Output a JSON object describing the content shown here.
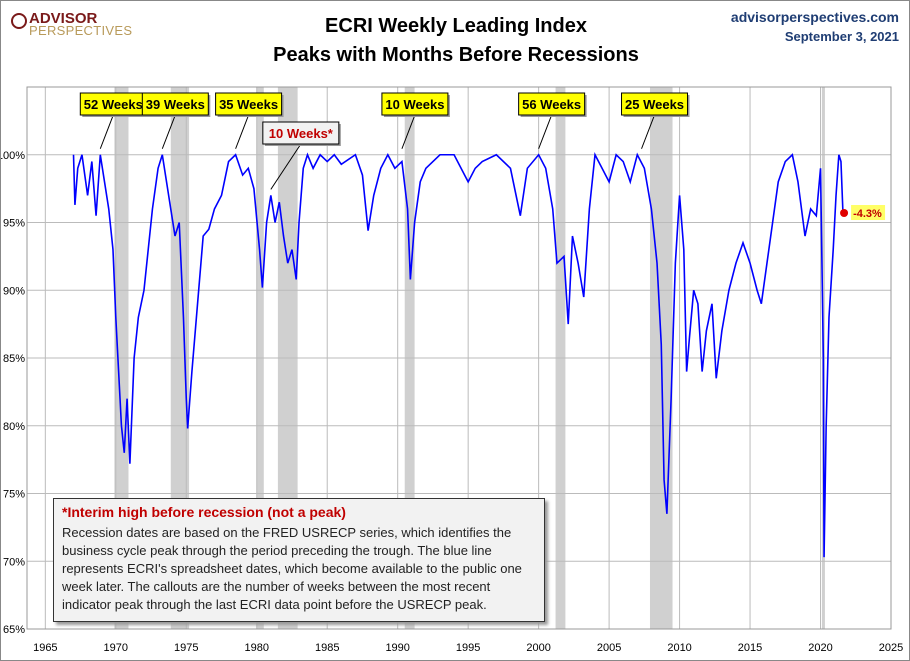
{
  "header": {
    "logo_line1": "ADVISOR",
    "logo_line2": "PERSPECTIVES",
    "site": "advisorperspectives.com",
    "date": "September 3, 2021"
  },
  "chart_data": {
    "type": "line",
    "title": "ECRI Weekly Leading Index",
    "subtitle": "Peaks with Months Before Recessions",
    "xlim": [
      1963.7,
      2025
    ],
    "ylim": [
      65,
      105
    ],
    "x_ticks": [
      "1965",
      "1970",
      "1975",
      "1980",
      "1985",
      "1990",
      "1995",
      "2000",
      "2005",
      "2010",
      "2015",
      "2020",
      "2025"
    ],
    "y_ticks": [
      "65%",
      "70%",
      "75%",
      "80%",
      "85%",
      "90%",
      "95%",
      "100%"
    ],
    "grid": true,
    "line_color": "#0000ff",
    "recession_color": "#d0d0d0",
    "recessions": [
      [
        1969.9,
        1970.9
      ],
      [
        1973.9,
        1975.2
      ],
      [
        1980.0,
        1980.5
      ],
      [
        1981.5,
        1982.9
      ],
      [
        1990.5,
        1991.2
      ],
      [
        2001.2,
        2001.9
      ],
      [
        2007.9,
        2009.5
      ],
      [
        2020.1,
        2020.3
      ]
    ],
    "series": [
      {
        "points": [
          [
            1967.0,
            100
          ],
          [
            1967.1,
            96.3
          ],
          [
            1967.3,
            99
          ],
          [
            1967.6,
            100
          ],
          [
            1968.0,
            97
          ],
          [
            1968.3,
            99.5
          ],
          [
            1968.6,
            95.5
          ],
          [
            1968.9,
            100
          ],
          [
            1969.2,
            98
          ],
          [
            1969.5,
            96
          ],
          [
            1969.8,
            93
          ],
          [
            1970.0,
            88
          ],
          [
            1970.2,
            84
          ],
          [
            1970.4,
            80
          ],
          [
            1970.6,
            78
          ],
          [
            1970.8,
            82
          ],
          [
            1971.0,
            77.2
          ],
          [
            1971.3,
            85
          ],
          [
            1971.6,
            88
          ],
          [
            1972.0,
            90
          ],
          [
            1972.3,
            93
          ],
          [
            1972.6,
            96
          ],
          [
            1973.0,
            99
          ],
          [
            1973.3,
            100
          ],
          [
            1973.6,
            98
          ],
          [
            1973.9,
            96
          ],
          [
            1974.2,
            94
          ],
          [
            1974.5,
            95
          ],
          [
            1974.8,
            88
          ],
          [
            1975.0,
            82
          ],
          [
            1975.1,
            79.8
          ],
          [
            1975.4,
            84
          ],
          [
            1975.8,
            89
          ],
          [
            1976.2,
            94
          ],
          [
            1976.6,
            94.5
          ],
          [
            1977.0,
            96
          ],
          [
            1977.5,
            97
          ],
          [
            1978.0,
            99.5
          ],
          [
            1978.5,
            100
          ],
          [
            1979.0,
            98.5
          ],
          [
            1979.4,
            99
          ],
          [
            1979.8,
            97.5
          ],
          [
            1980.2,
            93
          ],
          [
            1980.4,
            90.2
          ],
          [
            1980.7,
            95
          ],
          [
            1981.0,
            97
          ],
          [
            1981.3,
            95
          ],
          [
            1981.6,
            96.5
          ],
          [
            1981.9,
            94
          ],
          [
            1982.2,
            92
          ],
          [
            1982.5,
            93
          ],
          [
            1982.8,
            90.8
          ],
          [
            1983.0,
            95
          ],
          [
            1983.3,
            99
          ],
          [
            1983.6,
            100
          ],
          [
            1984.0,
            99
          ],
          [
            1984.5,
            100
          ],
          [
            1985.0,
            99.5
          ],
          [
            1985.5,
            100
          ],
          [
            1986.0,
            99.3
          ],
          [
            1987.0,
            100
          ],
          [
            1987.5,
            98.5
          ],
          [
            1987.9,
            94.4
          ],
          [
            1988.3,
            97
          ],
          [
            1988.8,
            99
          ],
          [
            1989.3,
            100
          ],
          [
            1989.8,
            99
          ],
          [
            1990.3,
            99.5
          ],
          [
            1990.7,
            96
          ],
          [
            1990.9,
            90.8
          ],
          [
            1991.2,
            95
          ],
          [
            1991.6,
            98
          ],
          [
            1992.0,
            99
          ],
          [
            1993.0,
            100
          ],
          [
            1994.0,
            100
          ],
          [
            1995.0,
            98
          ],
          [
            1995.5,
            99
          ],
          [
            1996.0,
            99.5
          ],
          [
            1997.0,
            100
          ],
          [
            1998.0,
            99
          ],
          [
            1998.7,
            95.5
          ],
          [
            1999.2,
            99
          ],
          [
            2000.0,
            100
          ],
          [
            2000.5,
            99
          ],
          [
            2001.0,
            96
          ],
          [
            2001.3,
            92
          ],
          [
            2001.8,
            92.5
          ],
          [
            2002.1,
            87.5
          ],
          [
            2002.4,
            94
          ],
          [
            2002.8,
            92
          ],
          [
            2003.2,
            89.5
          ],
          [
            2003.6,
            96
          ],
          [
            2004.0,
            100
          ],
          [
            2004.5,
            99
          ],
          [
            2005.0,
            98
          ],
          [
            2005.5,
            100
          ],
          [
            2006.0,
            99.5
          ],
          [
            2006.5,
            98
          ],
          [
            2007.0,
            100
          ],
          [
            2007.5,
            99
          ],
          [
            2008.0,
            96
          ],
          [
            2008.4,
            92
          ],
          [
            2008.7,
            86
          ],
          [
            2008.9,
            76
          ],
          [
            2009.1,
            73.5
          ],
          [
            2009.4,
            82
          ],
          [
            2009.7,
            92
          ],
          [
            2010.0,
            97
          ],
          [
            2010.3,
            93
          ],
          [
            2010.5,
            84
          ],
          [
            2010.7,
            86.5
          ],
          [
            2011.0,
            90
          ],
          [
            2011.3,
            89
          ],
          [
            2011.6,
            84
          ],
          [
            2011.9,
            87
          ],
          [
            2012.3,
            89
          ],
          [
            2012.6,
            83.5
          ],
          [
            2013.0,
            87
          ],
          [
            2013.5,
            90
          ],
          [
            2014.0,
            92
          ],
          [
            2014.5,
            93.5
          ],
          [
            2015.0,
            92
          ],
          [
            2015.5,
            90
          ],
          [
            2015.8,
            89
          ],
          [
            2016.2,
            92
          ],
          [
            2016.6,
            95
          ],
          [
            2017.0,
            98
          ],
          [
            2017.5,
            99.5
          ],
          [
            2018.0,
            100
          ],
          [
            2018.4,
            98
          ],
          [
            2018.9,
            94
          ],
          [
            2019.3,
            96
          ],
          [
            2019.7,
            95.5
          ],
          [
            2020.0,
            99
          ],
          [
            2020.2,
            85
          ],
          [
            2020.25,
            70.3
          ],
          [
            2020.4,
            80
          ],
          [
            2020.6,
            88
          ],
          [
            2020.9,
            93
          ],
          [
            2021.1,
            97
          ],
          [
            2021.3,
            100
          ],
          [
            2021.45,
            99.5
          ],
          [
            2021.58,
            96
          ],
          [
            2021.67,
            95.7
          ]
        ]
      }
    ],
    "last_point": {
      "x": 2021.67,
      "y": 95.7,
      "label": "-4.3%"
    },
    "callouts": [
      {
        "label": "52 Weeks",
        "x": 1968.9,
        "y": 100,
        "interim": false
      },
      {
        "label": "39 Weeks",
        "x": 1973.3,
        "y": 100,
        "interim": false
      },
      {
        "label": "35 Weeks",
        "x": 1978.5,
        "y": 100,
        "interim": false
      },
      {
        "label": "10 Weeks*",
        "x": 1981.0,
        "y": 97,
        "interim": true
      },
      {
        "label": "10 Weeks",
        "x": 1990.3,
        "y": 100,
        "interim": false
      },
      {
        "label": "56 Weeks",
        "x": 2000.0,
        "y": 100,
        "interim": false
      },
      {
        "label": "25 Weeks",
        "x": 2007.3,
        "y": 100,
        "interim": false
      }
    ]
  },
  "note": {
    "heading": "*Interim high before recession (not a peak)",
    "body": "Recession dates are based on the FRED USRECP series, which identifies the business cycle peak through the period preceding the trough. The blue line represents ECRI's spreadsheet dates, which become available to the public one week later. The callouts are the number of weeks between the most recent indicator peak through the last ECRI data point before the USRECP peak."
  }
}
